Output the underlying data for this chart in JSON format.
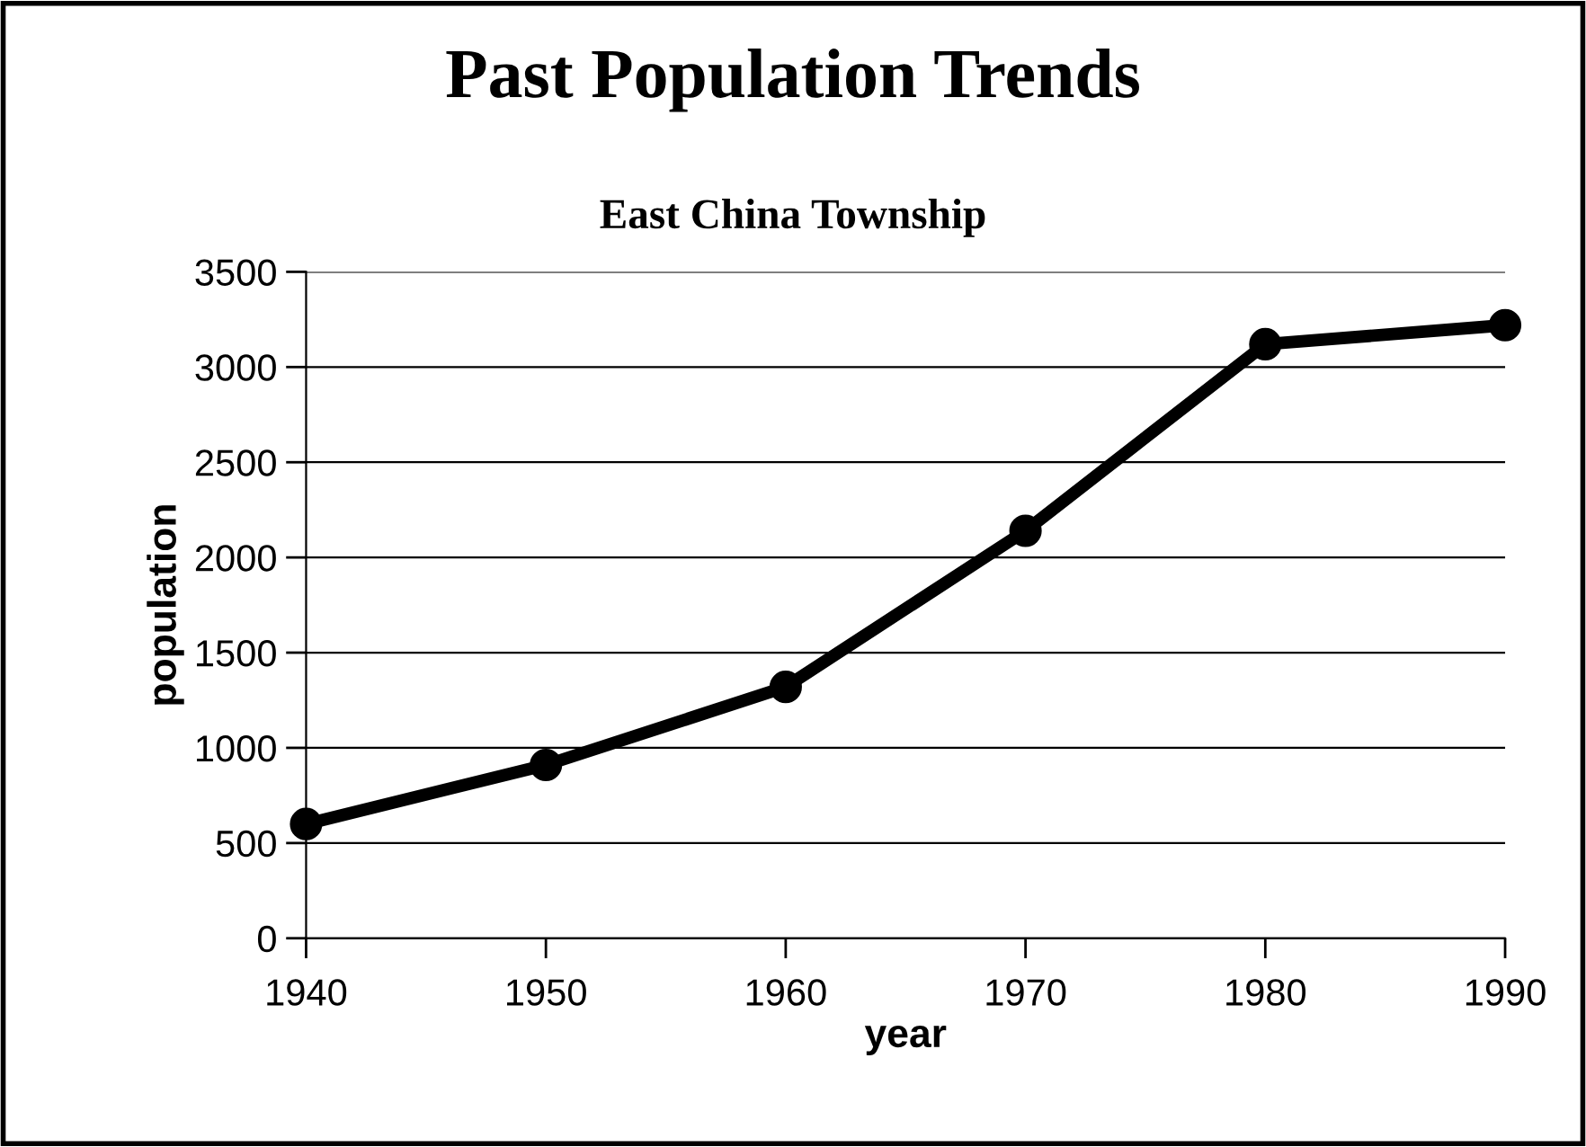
{
  "chart_data": {
    "type": "line",
    "title": "Past Population Trends",
    "subtitle": "East China Township",
    "xlabel": "year",
    "ylabel": "population",
    "x": [
      1940,
      1950,
      1960,
      1970,
      1980,
      1990
    ],
    "series": [
      {
        "color": "#000000",
        "values": [
          600,
          910,
          1320,
          2140,
          3120,
          3220
        ]
      }
    ],
    "xlim": [
      1940,
      1990
    ],
    "xticks": [
      1940,
      1950,
      1960,
      1970,
      1980,
      1990
    ],
    "ylim": [
      0,
      3500
    ],
    "yticks": [
      0,
      500,
      1000,
      1500,
      2000,
      2500,
      3000,
      3500
    ],
    "grid": "y",
    "marker": "circle",
    "line_style": "solid"
  }
}
